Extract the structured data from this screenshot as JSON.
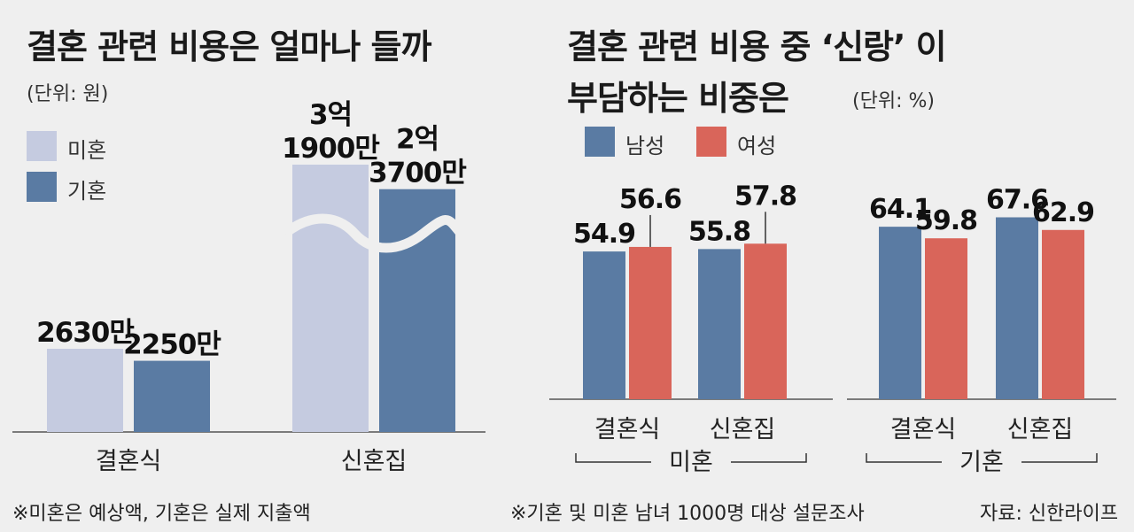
{
  "left": {
    "title": "결혼 관련 비용은 얼마나 들까",
    "unit": "(단위: 원)",
    "legend": [
      {
        "label": "미혼",
        "color": "#c5cbe0"
      },
      {
        "label": "기혼",
        "color": "#5a7ba3"
      }
    ],
    "footnote": "※미혼은 예상액, 기혼은 실제 지출액"
  },
  "right": {
    "title_line1": "결혼 관련 비용 중 ‘신랑’ 이",
    "title_line2": "부담하는 비중은",
    "unit": "(단위: %)",
    "legend": [
      {
        "label": "남성",
        "color": "#5a7ba3"
      },
      {
        "label": "여성",
        "color": "#d9655a"
      }
    ],
    "group_labels": [
      "미혼",
      "기혼"
    ],
    "footnote": "※기혼 및 미혼 남녀 1000명 대상 설문조사",
    "source": "자료: 신한라이프"
  },
  "chart_data": [
    {
      "type": "bar",
      "title": "결혼 관련 비용은 얼마나 들까",
      "unit": "원",
      "categories": [
        "결혼식",
        "신혼집"
      ],
      "series": [
        {
          "name": "미혼",
          "values": [
            26300000,
            319000000
          ],
          "labels": [
            "2630만",
            "3억\n1900만"
          ]
        },
        {
          "name": "기혼",
          "values": [
            22500000,
            237000000
          ],
          "labels": [
            "2250만",
            "2억\n3700만"
          ]
        }
      ],
      "axis_break": true
    },
    {
      "type": "bar",
      "title": "결혼 관련 비용 중 ‘신랑’ 이 부담하는 비중은",
      "unit": "%",
      "groups": [
        {
          "name": "미혼",
          "categories": [
            "결혼식",
            "신혼집"
          ],
          "series": [
            {
              "name": "남성",
              "values": [
                54.9,
                55.8
              ]
            },
            {
              "name": "여성",
              "values": [
                56.6,
                57.8
              ]
            }
          ]
        },
        {
          "name": "기혼",
          "categories": [
            "결혼식",
            "신혼집"
          ],
          "series": [
            {
              "name": "남성",
              "values": [
                64.1,
                67.6
              ]
            },
            {
              "name": "여성",
              "values": [
                59.8,
                62.9
              ]
            }
          ]
        }
      ]
    }
  ]
}
